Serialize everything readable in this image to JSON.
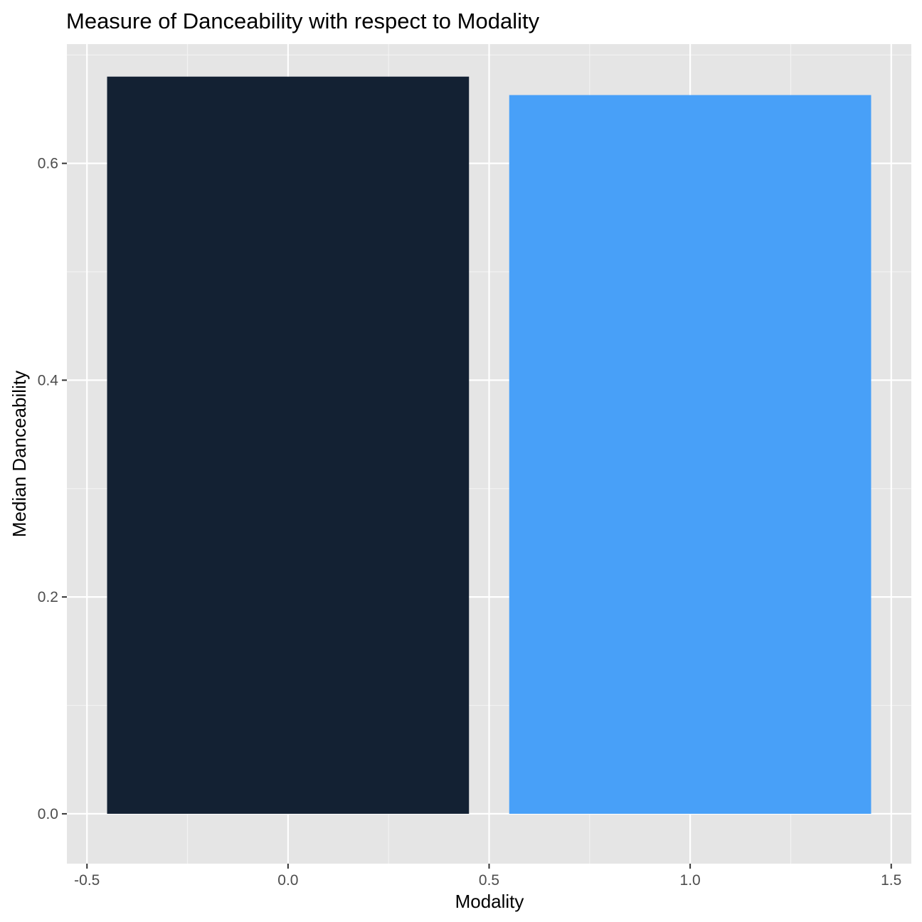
{
  "chart_data": {
    "type": "bar",
    "title": "Measure of Danceability with respect to Modality",
    "xlabel": "Modality",
    "ylabel": "Median Danceability",
    "x": [
      0,
      1
    ],
    "values": [
      0.68,
      0.663
    ],
    "bar_width": 0.9,
    "bar_colors": [
      "#132133",
      "#48A0F8"
    ],
    "xlim": [
      -0.55,
      1.55
    ],
    "ylim": [
      -0.046,
      0.71
    ],
    "x_ticks": [
      -0.5,
      0.0,
      0.5,
      1.0,
      1.5
    ],
    "x_tick_labels": [
      "-0.5",
      "0.0",
      "0.5",
      "1.0",
      "1.5"
    ],
    "y_ticks": [
      0.0,
      0.2,
      0.4,
      0.6
    ],
    "y_tick_labels": [
      "0.0",
      "0.2",
      "0.4",
      "0.6"
    ],
    "grid": true,
    "legend": "none"
  },
  "colors": {
    "panel_background": "#E5E5E5",
    "grid_major": "#FFFFFF",
    "grid_minor": "#F2F2F2",
    "tick_text": "#4D4D4D"
  }
}
